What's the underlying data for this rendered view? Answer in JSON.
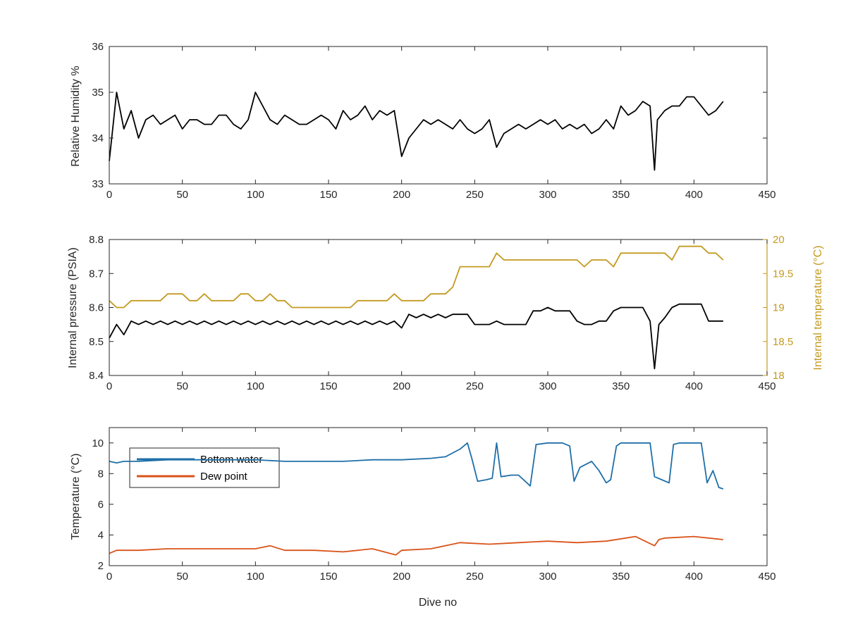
{
  "chart_data": [
    {
      "type": "line",
      "id": "humidity",
      "xlabel": "",
      "ylabel": "Relative Humidity %",
      "xlim": [
        0,
        450
      ],
      "ylim": [
        33,
        36
      ],
      "xticks": [
        0,
        50,
        100,
        150,
        200,
        250,
        300,
        350,
        400,
        450
      ],
      "yticks": [
        33,
        34,
        35,
        36
      ],
      "grid": false,
      "series": [
        {
          "color": "#000000",
          "x": [
            0,
            5,
            10,
            15,
            20,
            25,
            30,
            35,
            40,
            45,
            50,
            55,
            60,
            65,
            70,
            75,
            80,
            85,
            90,
            95,
            100,
            105,
            110,
            115,
            120,
            125,
            130,
            135,
            140,
            145,
            150,
            155,
            160,
            165,
            170,
            175,
            180,
            185,
            190,
            195,
            200,
            205,
            210,
            215,
            220,
            225,
            230,
            235,
            240,
            245,
            250,
            255,
            260,
            265,
            270,
            275,
            280,
            285,
            290,
            295,
            300,
            305,
            310,
            315,
            320,
            325,
            330,
            335,
            340,
            345,
            350,
            355,
            360,
            365,
            370,
            373,
            375,
            380,
            385,
            390,
            395,
            400,
            405,
            410,
            415,
            420
          ],
          "values": [
            33.5,
            35.0,
            34.2,
            34.6,
            34.0,
            34.4,
            34.5,
            34.3,
            34.4,
            34.5,
            34.2,
            34.4,
            34.4,
            34.3,
            34.3,
            34.5,
            34.5,
            34.3,
            34.2,
            34.4,
            35.0,
            34.7,
            34.4,
            34.3,
            34.5,
            34.4,
            34.3,
            34.3,
            34.4,
            34.5,
            34.4,
            34.2,
            34.6,
            34.4,
            34.5,
            34.7,
            34.4,
            34.6,
            34.5,
            34.6,
            33.6,
            34.0,
            34.2,
            34.4,
            34.3,
            34.4,
            34.3,
            34.2,
            34.4,
            34.2,
            34.1,
            34.2,
            34.4,
            33.8,
            34.1,
            34.2,
            34.3,
            34.2,
            34.3,
            34.4,
            34.3,
            34.4,
            34.2,
            34.3,
            34.2,
            34.3,
            34.1,
            34.2,
            34.4,
            34.2,
            34.7,
            34.5,
            34.6,
            34.8,
            34.7,
            33.3,
            34.4,
            34.6,
            34.7,
            34.7,
            34.9,
            34.9,
            34.7,
            34.5,
            34.6,
            34.8
          ]
        }
      ]
    },
    {
      "type": "line",
      "id": "pressure",
      "xlabel": "",
      "ylabel": "Internal pressure (PSIA)",
      "ylabel_right": "Internal temperature (°C)",
      "xlim": [
        0,
        450
      ],
      "ylim": [
        8.4,
        8.8
      ],
      "ylim_right": [
        18,
        20
      ],
      "xticks": [
        0,
        50,
        100,
        150,
        200,
        250,
        300,
        350,
        400,
        450
      ],
      "yticks": [
        8.4,
        8.5,
        8.6,
        8.7,
        8.8
      ],
      "yticks_right": [
        18,
        18.5,
        19,
        19.5,
        20
      ],
      "grid": false,
      "series": [
        {
          "axis": "left",
          "color": "#000000",
          "x": [
            0,
            5,
            10,
            15,
            20,
            25,
            30,
            35,
            40,
            45,
            50,
            55,
            60,
            65,
            70,
            75,
            80,
            85,
            90,
            95,
            100,
            105,
            110,
            115,
            120,
            125,
            130,
            135,
            140,
            145,
            150,
            155,
            160,
            165,
            170,
            175,
            180,
            185,
            190,
            195,
            200,
            205,
            210,
            215,
            220,
            225,
            230,
            235,
            240,
            245,
            250,
            255,
            260,
            265,
            270,
            275,
            280,
            285,
            290,
            295,
            300,
            305,
            310,
            315,
            320,
            325,
            330,
            335,
            340,
            345,
            350,
            355,
            360,
            365,
            370,
            373,
            376,
            380,
            385,
            390,
            395,
            400,
            405,
            410,
            415,
            420
          ],
          "values": [
            8.51,
            8.55,
            8.52,
            8.56,
            8.55,
            8.56,
            8.55,
            8.56,
            8.55,
            8.56,
            8.55,
            8.56,
            8.55,
            8.56,
            8.55,
            8.56,
            8.55,
            8.56,
            8.55,
            8.56,
            8.55,
            8.56,
            8.55,
            8.56,
            8.55,
            8.56,
            8.55,
            8.56,
            8.55,
            8.56,
            8.55,
            8.56,
            8.55,
            8.56,
            8.55,
            8.56,
            8.55,
            8.56,
            8.55,
            8.56,
            8.54,
            8.58,
            8.57,
            8.58,
            8.57,
            8.58,
            8.57,
            8.58,
            8.58,
            8.58,
            8.55,
            8.55,
            8.55,
            8.56,
            8.55,
            8.55,
            8.55,
            8.55,
            8.59,
            8.59,
            8.6,
            8.59,
            8.59,
            8.59,
            8.56,
            8.55,
            8.55,
            8.56,
            8.56,
            8.59,
            8.6,
            8.6,
            8.6,
            8.6,
            8.56,
            8.42,
            8.55,
            8.57,
            8.6,
            8.61,
            8.61,
            8.61,
            8.61,
            8.56,
            8.56,
            8.56
          ]
        },
        {
          "axis": "right",
          "color": "#C39A20",
          "x": [
            0,
            5,
            10,
            15,
            20,
            25,
            30,
            35,
            40,
            45,
            50,
            55,
            60,
            65,
            70,
            75,
            80,
            85,
            90,
            95,
            100,
            105,
            110,
            115,
            120,
            125,
            130,
            135,
            140,
            145,
            150,
            155,
            160,
            165,
            170,
            175,
            180,
            185,
            190,
            195,
            200,
            205,
            210,
            215,
            220,
            225,
            230,
            235,
            240,
            245,
            250,
            255,
            260,
            265,
            270,
            275,
            280,
            285,
            290,
            295,
            300,
            305,
            310,
            315,
            320,
            325,
            330,
            335,
            340,
            345,
            350,
            355,
            360,
            365,
            370,
            375,
            380,
            385,
            390,
            395,
            400,
            405,
            410,
            415,
            420
          ],
          "values": [
            19.1,
            19.0,
            19.0,
            19.1,
            19.1,
            19.1,
            19.1,
            19.1,
            19.2,
            19.2,
            19.2,
            19.1,
            19.1,
            19.2,
            19.1,
            19.1,
            19.1,
            19.1,
            19.2,
            19.2,
            19.1,
            19.1,
            19.2,
            19.1,
            19.1,
            19.0,
            19.0,
            19.0,
            19.0,
            19.0,
            19.0,
            19.0,
            19.0,
            19.0,
            19.1,
            19.1,
            19.1,
            19.1,
            19.1,
            19.2,
            19.1,
            19.1,
            19.1,
            19.1,
            19.2,
            19.2,
            19.2,
            19.3,
            19.6,
            19.6,
            19.6,
            19.6,
            19.6,
            19.8,
            19.7,
            19.7,
            19.7,
            19.7,
            19.7,
            19.7,
            19.7,
            19.7,
            19.7,
            19.7,
            19.7,
            19.6,
            19.7,
            19.7,
            19.7,
            19.6,
            19.8,
            19.8,
            19.8,
            19.8,
            19.8,
            19.8,
            19.8,
            19.7,
            19.9,
            19.9,
            19.9,
            19.9,
            19.8,
            19.8,
            19.7
          ]
        }
      ]
    },
    {
      "type": "line",
      "id": "temperature",
      "xlabel": "Dive no",
      "ylabel": "Temperature (°C)",
      "xlim": [
        0,
        450
      ],
      "ylim": [
        2,
        11
      ],
      "xticks": [
        0,
        50,
        100,
        150,
        200,
        250,
        300,
        350,
        400,
        450
      ],
      "yticks": [
        2,
        4,
        6,
        8,
        10
      ],
      "grid": false,
      "legend": "top-left",
      "series": [
        {
          "name": "Bottom water",
          "color": "#1F6FA8",
          "x": [
            0,
            5,
            10,
            20,
            40,
            60,
            80,
            100,
            120,
            140,
            160,
            180,
            200,
            220,
            230,
            240,
            245,
            248,
            252,
            258,
            262,
            265,
            268,
            275,
            280,
            288,
            292,
            300,
            310,
            315,
            318,
            322,
            330,
            335,
            340,
            343,
            347,
            350,
            360,
            370,
            373,
            378,
            383,
            386,
            390,
            400,
            405,
            409,
            413,
            417,
            420
          ],
          "values": [
            8.8,
            8.7,
            8.8,
            8.8,
            8.9,
            8.9,
            8.9,
            8.9,
            8.8,
            8.8,
            8.8,
            8.9,
            8.9,
            9.0,
            9.1,
            9.6,
            10.0,
            9.0,
            7.5,
            7.6,
            7.7,
            10.0,
            7.8,
            7.9,
            7.9,
            7.2,
            9.9,
            10.0,
            10.0,
            9.8,
            7.5,
            8.4,
            8.8,
            8.2,
            7.4,
            7.6,
            9.8,
            10.0,
            10.0,
            10.0,
            7.8,
            7.6,
            7.4,
            9.9,
            10.0,
            10.0,
            10.0,
            7.4,
            8.2,
            7.1,
            7.0
          ]
        },
        {
          "name": "Dew point",
          "color": "#D95319",
          "x": [
            0,
            5,
            10,
            20,
            40,
            60,
            80,
            100,
            110,
            120,
            140,
            160,
            180,
            196,
            200,
            220,
            240,
            260,
            280,
            300,
            320,
            340,
            360,
            373,
            376,
            380,
            400,
            420
          ],
          "values": [
            2.8,
            3.0,
            3.0,
            3.0,
            3.1,
            3.1,
            3.1,
            3.1,
            3.3,
            3.0,
            3.0,
            2.9,
            3.1,
            2.7,
            3.0,
            3.1,
            3.5,
            3.4,
            3.5,
            3.6,
            3.5,
            3.6,
            3.9,
            3.3,
            3.7,
            3.8,
            3.9,
            3.7
          ]
        }
      ]
    }
  ],
  "colors": {
    "axis": "#262626",
    "right_axis": "#C39A20"
  }
}
